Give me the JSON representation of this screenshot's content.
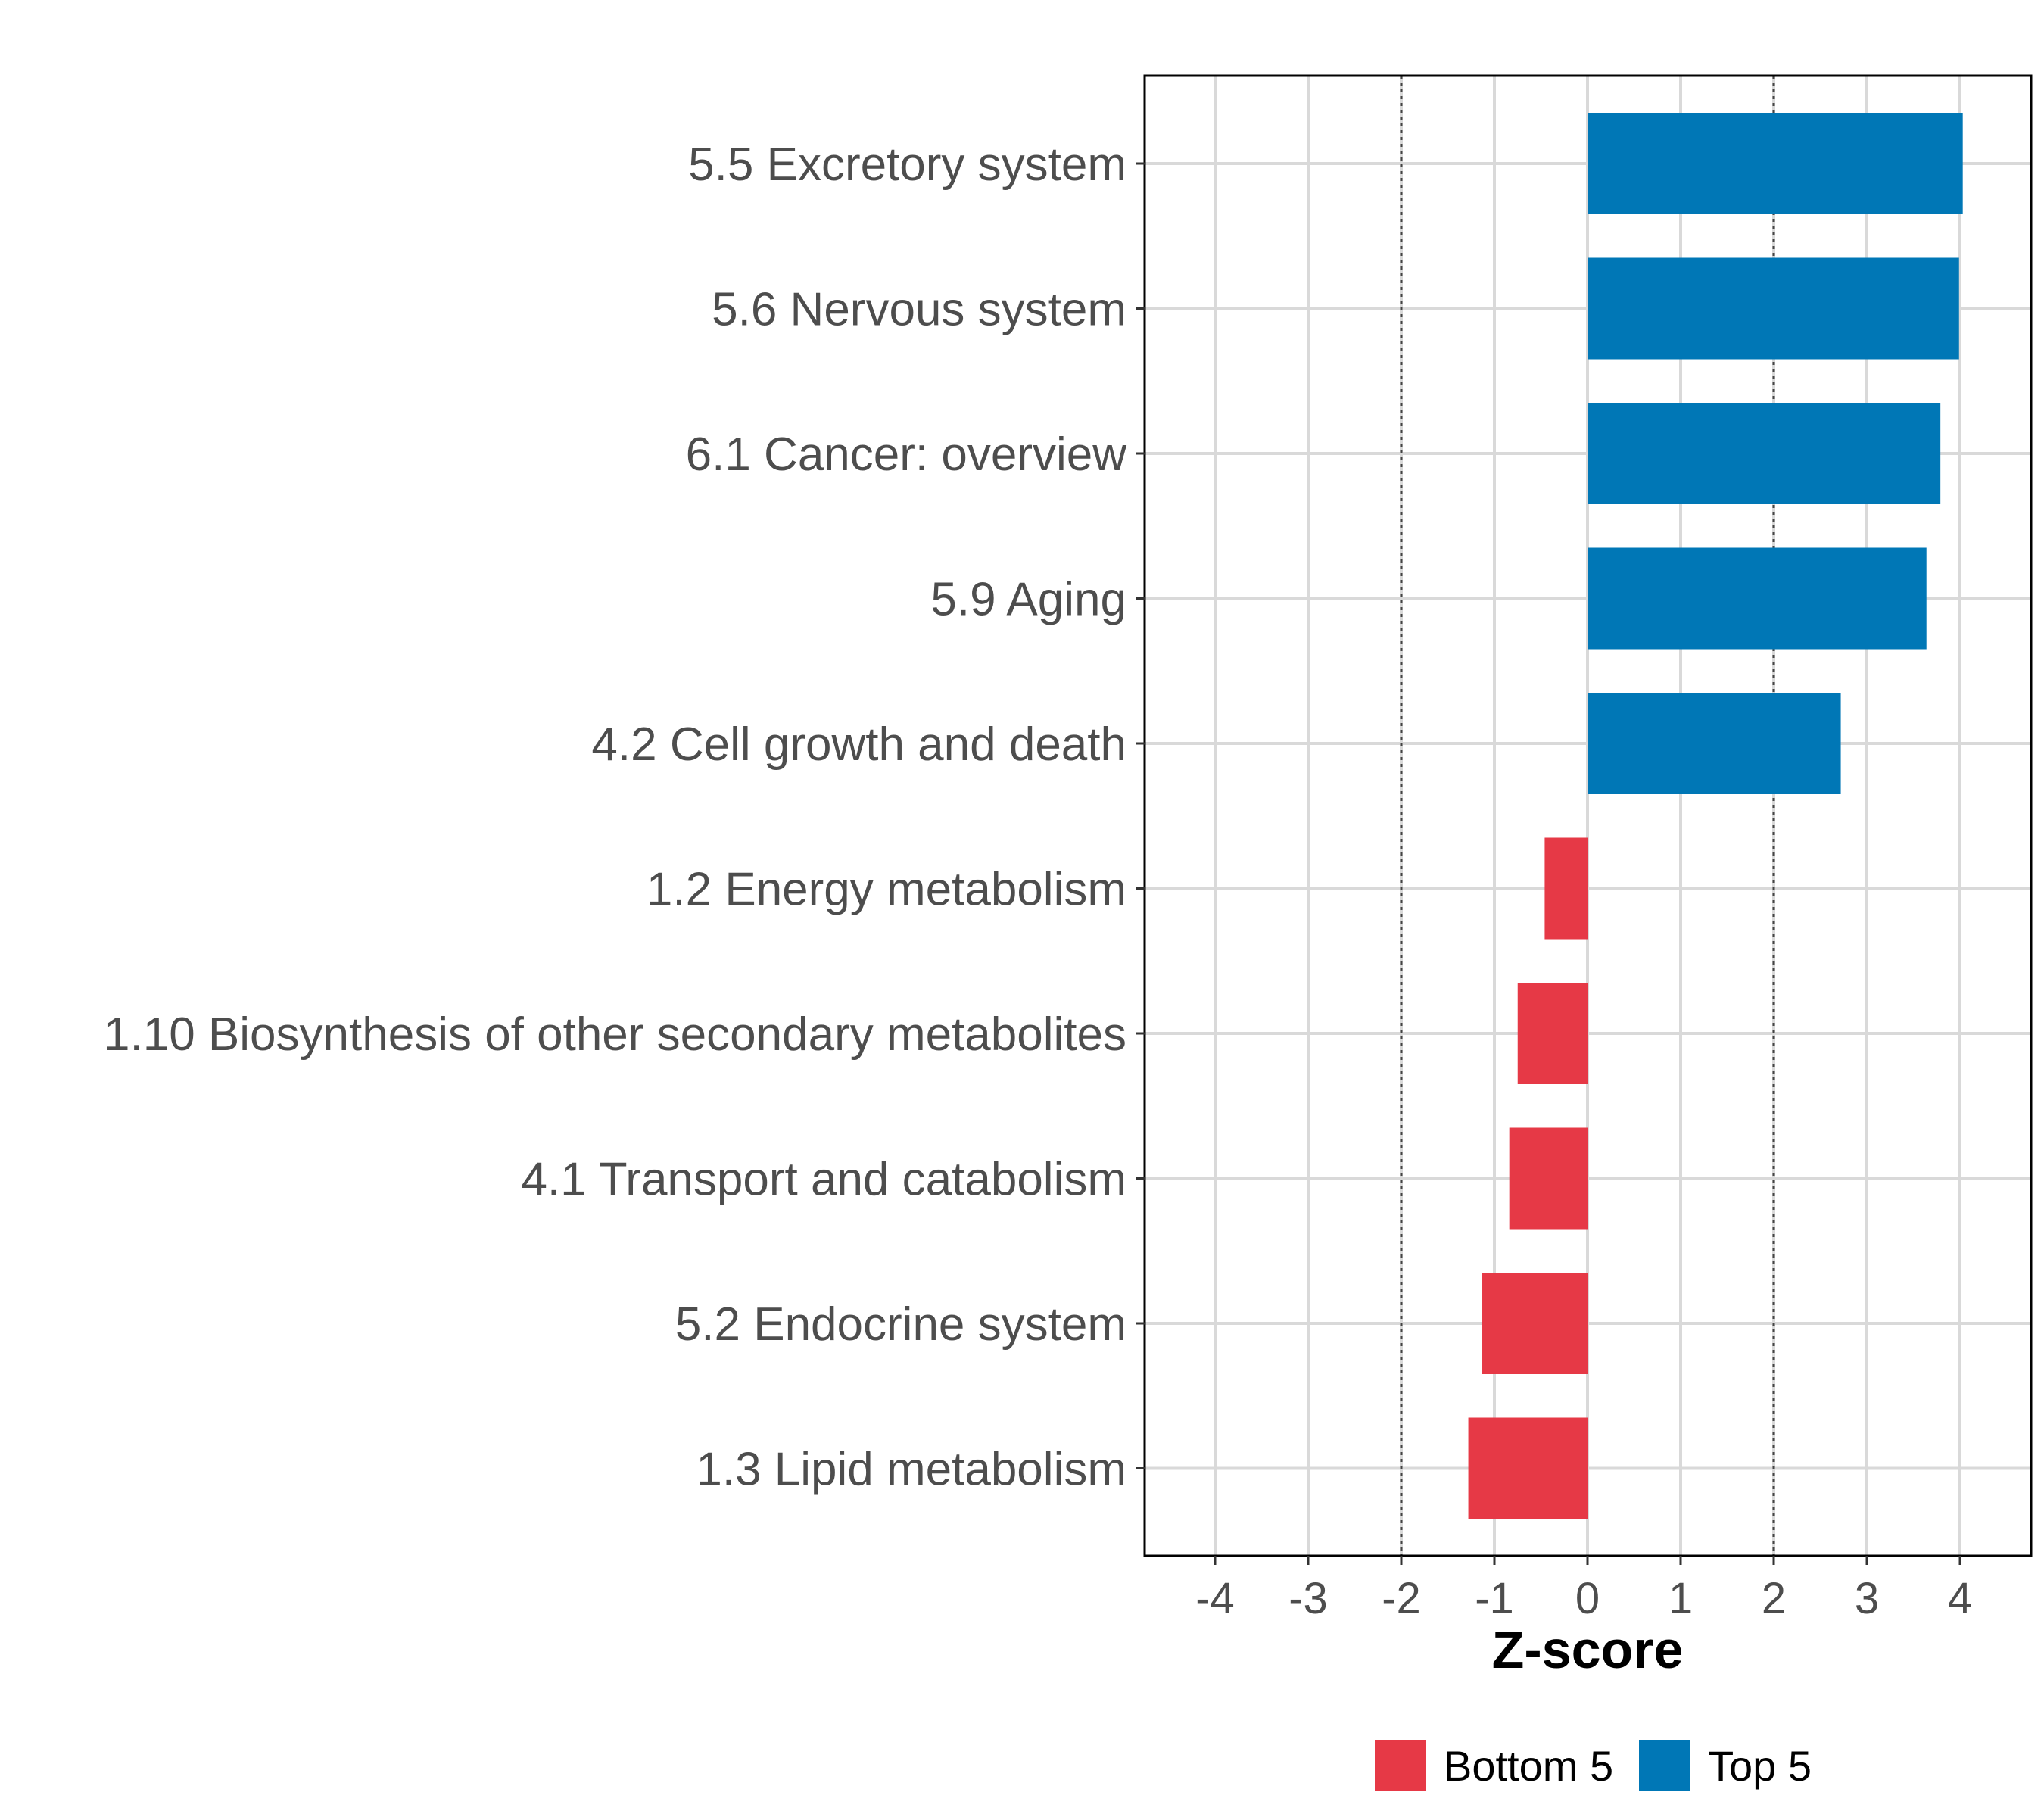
{
  "chart_data": {
    "type": "bar",
    "orientation": "horizontal",
    "title": "",
    "xlabel": "Z-score",
    "ylabel": "",
    "xlim": [
      -4.75,
      4.75
    ],
    "xticks": [
      -4,
      -3,
      -2,
      -1,
      0,
      1,
      2,
      3,
      4
    ],
    "xtick_labels": [
      "-4",
      "-3",
      "-2",
      "-1",
      "0",
      "1",
      "2",
      "3",
      "4"
    ],
    "reference_lines": [
      -2,
      2
    ],
    "grid": true,
    "legend_position": "bottom",
    "categories": [
      "5.5 Excretory system",
      "5.6 Nervous system",
      "6.1 Cancer: overview",
      "5.9 Aging",
      "4.2 Cell growth and death",
      "1.2 Energy metabolism",
      "1.10 Biosynthesis of other secondary metabolites",
      "4.1 Transport and catabolism",
      "5.2 Endocrine system",
      "1.3 Lipid metabolism"
    ],
    "values": [
      4.03,
      3.99,
      3.79,
      3.64,
      2.72,
      -0.46,
      -0.75,
      -0.84,
      -1.13,
      -1.28
    ],
    "groups": [
      "Top 5",
      "Top 5",
      "Top 5",
      "Top 5",
      "Top 5",
      "Bottom 5",
      "Bottom 5",
      "Bottom 5",
      "Bottom 5",
      "Bottom 5"
    ],
    "legend": [
      {
        "name": "Bottom 5",
        "color": "#e63946"
      },
      {
        "name": "Top 5",
        "color": "#0077b6"
      }
    ]
  }
}
